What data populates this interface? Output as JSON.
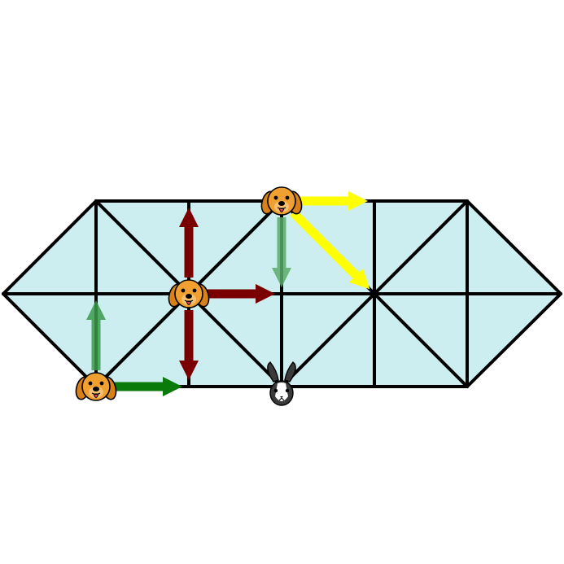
{
  "game": {
    "type": "hounds-and-hare",
    "board_fill": "#cdeef0",
    "line_color": "#000000"
  },
  "pieces": [
    {
      "kind": "hound",
      "icon": "dog-face-icon",
      "node": "b2"
    },
    {
      "kind": "hound",
      "icon": "dog-face-icon",
      "node": "c1"
    },
    {
      "kind": "hound",
      "icon": "dog-face-icon",
      "node": "d0"
    },
    {
      "kind": "hare",
      "icon": "rabbit-face-icon",
      "node": "d2"
    }
  ],
  "moves": [
    {
      "from": "b2",
      "to": "b1",
      "color": "#3a9a4a",
      "style": "faded"
    },
    {
      "from": "b2",
      "to": "c2",
      "color": "#0a7a0a",
      "style": "solid"
    },
    {
      "from": "c1",
      "to": "c0",
      "color": "#7a0000",
      "style": "solid"
    },
    {
      "from": "c1",
      "to": "c2",
      "color": "#7a0000",
      "style": "solid"
    },
    {
      "from": "c1",
      "to": "d1",
      "color": "#7a0000",
      "style": "solid"
    },
    {
      "from": "d0",
      "to": "d1",
      "color": "#5aaa6a",
      "style": "faded"
    },
    {
      "from": "d0",
      "to": "e0",
      "color": "#ffff00",
      "style": "solid"
    },
    {
      "from": "d0",
      "to": "e1",
      "color": "#ffff00",
      "style": "solid"
    }
  ],
  "colors": {
    "hound_fur": "#f0a030",
    "hound_ear": "#d8801a",
    "hare_fur": "#3a3a3a",
    "hare_face": "#ffffff"
  }
}
